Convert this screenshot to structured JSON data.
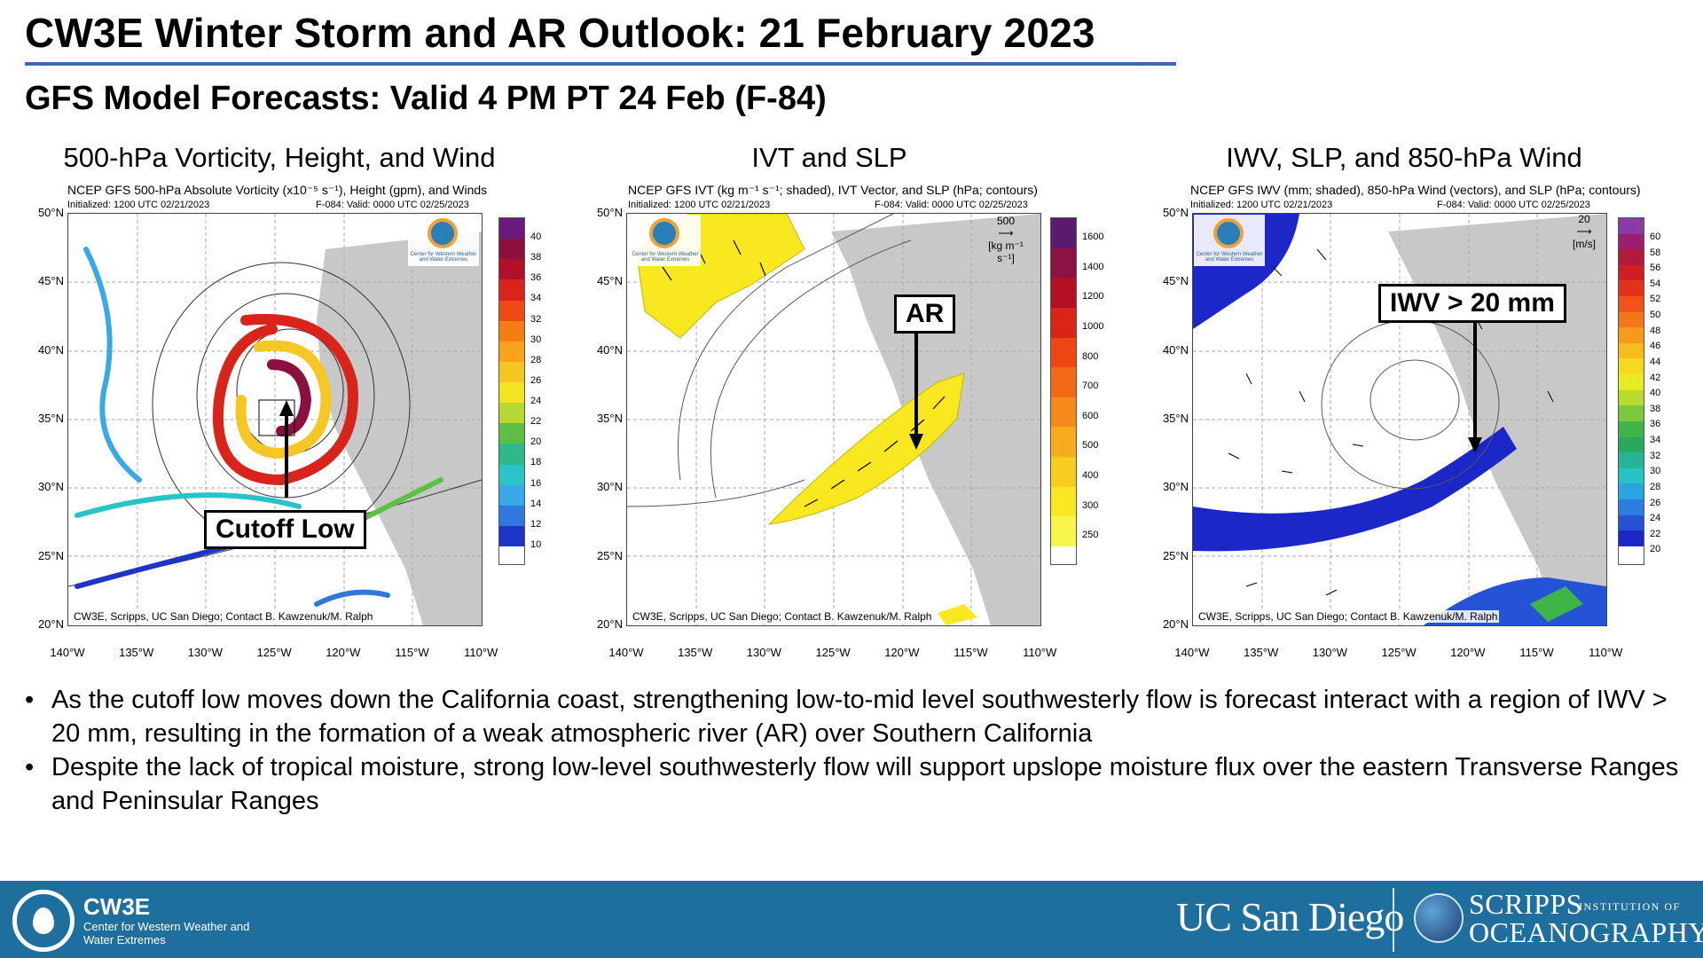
{
  "title": "CW3E Winter Storm and AR Outlook: 21 February 2023",
  "subtitle": "GFS Model Forecasts: Valid 4 PM PT 24 Feb (F-84)",
  "panels": [
    {
      "heading": "500-hPa Vorticity, Height, and Wind",
      "caption": "NCEP GFS 500-hPa Absolute Vorticity (x10⁻⁵ s⁻¹), Height (gpm), and Winds",
      "initialized": "Initialized: 1200 UTC 02/21/2023",
      "valid": "F-084: Valid: 0000 UTC 02/25/2023",
      "credit": "CW3E, Scripps, UC San Diego; Contact B. Kawzenuk/M. Ralph",
      "callout": "Cutoff Low",
      "colorbar_labels": [
        "40",
        "38",
        "36",
        "34",
        "32",
        "30",
        "28",
        "26",
        "24",
        "22",
        "20",
        "18",
        "16",
        "14",
        "12",
        "10"
      ],
      "colors": [
        "#6a1a7a",
        "#8b1040",
        "#b0102a",
        "#d8241b",
        "#ee4a14",
        "#f57d16",
        "#f9a21c",
        "#f5c723",
        "#f2e51f",
        "#b7d830",
        "#5cc045",
        "#2fb889",
        "#2ac3c7",
        "#38a8e6",
        "#2f79dc",
        "#1d34c8"
      ]
    },
    {
      "heading": "IVT and SLP",
      "caption": "NCEP GFS IVT (kg m⁻¹ s⁻¹; shaded), IVT Vector, and SLP (hPa; contours)",
      "initialized": "Initialized: 1200 UTC 02/21/2023",
      "valid": "F-084: Valid: 0000 UTC 02/25/2023",
      "credit": "CW3E, Scripps, UC San Diego; Contact B. Kawzenuk/M. Ralph",
      "callout": "AR",
      "ref_vector": "500",
      "ref_units": "[kg m⁻¹ s⁻¹]",
      "colorbar_labels": [
        "1600",
        "1400",
        "1200",
        "1000",
        "800",
        "700",
        "600",
        "500",
        "400",
        "300",
        "250"
      ],
      "colors": [
        "#5a1a6e",
        "#8a1244",
        "#b41024",
        "#d92516",
        "#ee4713",
        "#f26a15",
        "#f58c1a",
        "#f7ac1d",
        "#f8cc1f",
        "#f9e81f",
        "#f6f54a"
      ]
    },
    {
      "heading": "IWV, SLP, and 850-hPa Wind",
      "caption": "NCEP GFS IWV (mm; shaded), 850-hPa Wind (vectors), and SLP (hPa; contours)",
      "initialized": "Initialized: 1200 UTC 02/21/2023",
      "valid": "F-084: Valid: 0000 UTC 02/25/2023",
      "credit": "CW3E, Scripps, UC San Diego; Contact B. Kawzenuk/M. Ralph",
      "callout": "IWV > 20 mm",
      "ref_vector": "20",
      "ref_units": "[m/s]",
      "colorbar_labels": [
        "60",
        "58",
        "56",
        "54",
        "52",
        "50",
        "48",
        "46",
        "44",
        "42",
        "40",
        "38",
        "36",
        "34",
        "32",
        "30",
        "28",
        "26",
        "24",
        "22",
        "20"
      ],
      "colors": [
        "#8a3aa6",
        "#9b1f6e",
        "#b11a3a",
        "#cf1f22",
        "#e2321b",
        "#ef5318",
        "#f37718",
        "#f69a1b",
        "#f8bb1d",
        "#f6d81e",
        "#e5ec22",
        "#b8dc2b",
        "#7cc83c",
        "#3fb548",
        "#2aa85e",
        "#26b594",
        "#27c4c5",
        "#2aa4e0",
        "#2b7de0",
        "#2453d6",
        "#1b27c6"
      ]
    }
  ],
  "latitude_labels": [
    "50°N",
    "45°N",
    "40°N",
    "35°N",
    "30°N",
    "25°N",
    "20°N"
  ],
  "longitude_labels": [
    "140°W",
    "135°W",
    "130°W",
    "125°W",
    "120°W",
    "115°W",
    "110°W"
  ],
  "logo_mini_text": "Center for Western Weather and Water Extremes",
  "bullets": [
    "As the cutoff low moves down the California coast, strengthening low-to-mid level southwesterly flow is forecast interact with a region of IWV > 20 mm, resulting in the formation of a weak atmospheric river (AR) over Southern California",
    "Despite the lack of tropical moisture, strong low-level southwesterly flow will support upslope moisture flux over the eastern Transverse Ranges and Peninsular Ranges"
  ],
  "footer": {
    "cw3e_name": "CW3E",
    "cw3e_sub": "Center for Western Weather and Water Extremes",
    "ucsd": "UC San Diego",
    "scripps_big": "SCRIPPS",
    "scripps_small": "INSTITUTION OF",
    "oceanography": "OCEANOGRAPHY"
  }
}
